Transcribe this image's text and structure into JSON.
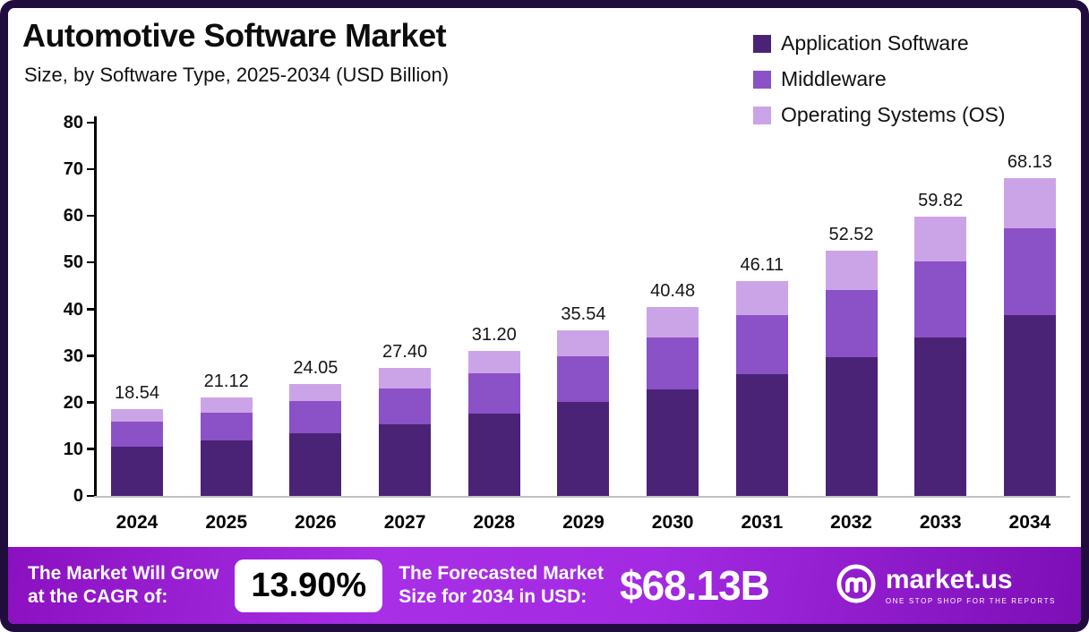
{
  "header": {
    "title": "Automotive Software Market",
    "subtitle": "Size, by Software Type, 2025-2034 (USD Billion)"
  },
  "chart_data": {
    "type": "bar",
    "stacked": true,
    "title": "Automotive Software Market Size, by Software Type, 2025-2034 (USD Billion)",
    "xlabel": "",
    "ylabel": "USD Billion",
    "ylim": [
      0,
      80
    ],
    "yticks": [
      0,
      10,
      20,
      30,
      40,
      50,
      60,
      70,
      80
    ],
    "grid": false,
    "legend_position": "top-right",
    "categories": [
      "2024",
      "2025",
      "2026",
      "2027",
      "2028",
      "2029",
      "2030",
      "2031",
      "2032",
      "2033",
      "2034"
    ],
    "totals": [
      18.54,
      21.12,
      24.05,
      27.4,
      31.2,
      35.54,
      40.48,
      46.11,
      52.52,
      59.82,
      68.13
    ],
    "series": [
      {
        "name": "Application Software",
        "color": "#4a2377",
        "values": [
          10.5,
          11.9,
          13.5,
          15.4,
          17.6,
          20.1,
          22.9,
          26.1,
          29.8,
          34.0,
          38.8
        ]
      },
      {
        "name": "Middleware",
        "color": "#8b51c6",
        "values": [
          5.4,
          6.0,
          6.8,
          7.6,
          8.7,
          9.8,
          11.1,
          12.6,
          14.3,
          16.3,
          18.5
        ]
      },
      {
        "name": "Operating Systems (OS)",
        "color": "#cba4e8",
        "values": [
          2.64,
          3.22,
          3.75,
          4.4,
          4.9,
          5.64,
          6.48,
          7.41,
          8.42,
          9.52,
          10.83
        ]
      }
    ]
  },
  "footer": {
    "cagr_label": "The Market Will Grow\nat the CAGR of:",
    "cagr_value": "13.90%",
    "forecast_label": "The Forecasted Market\nSize for 2034 in USD:",
    "forecast_value": "$68.13B",
    "brand": "market.us",
    "brand_tagline": "ONE STOP SHOP FOR THE REPORTS",
    "banner_color": "#9a22d8"
  }
}
